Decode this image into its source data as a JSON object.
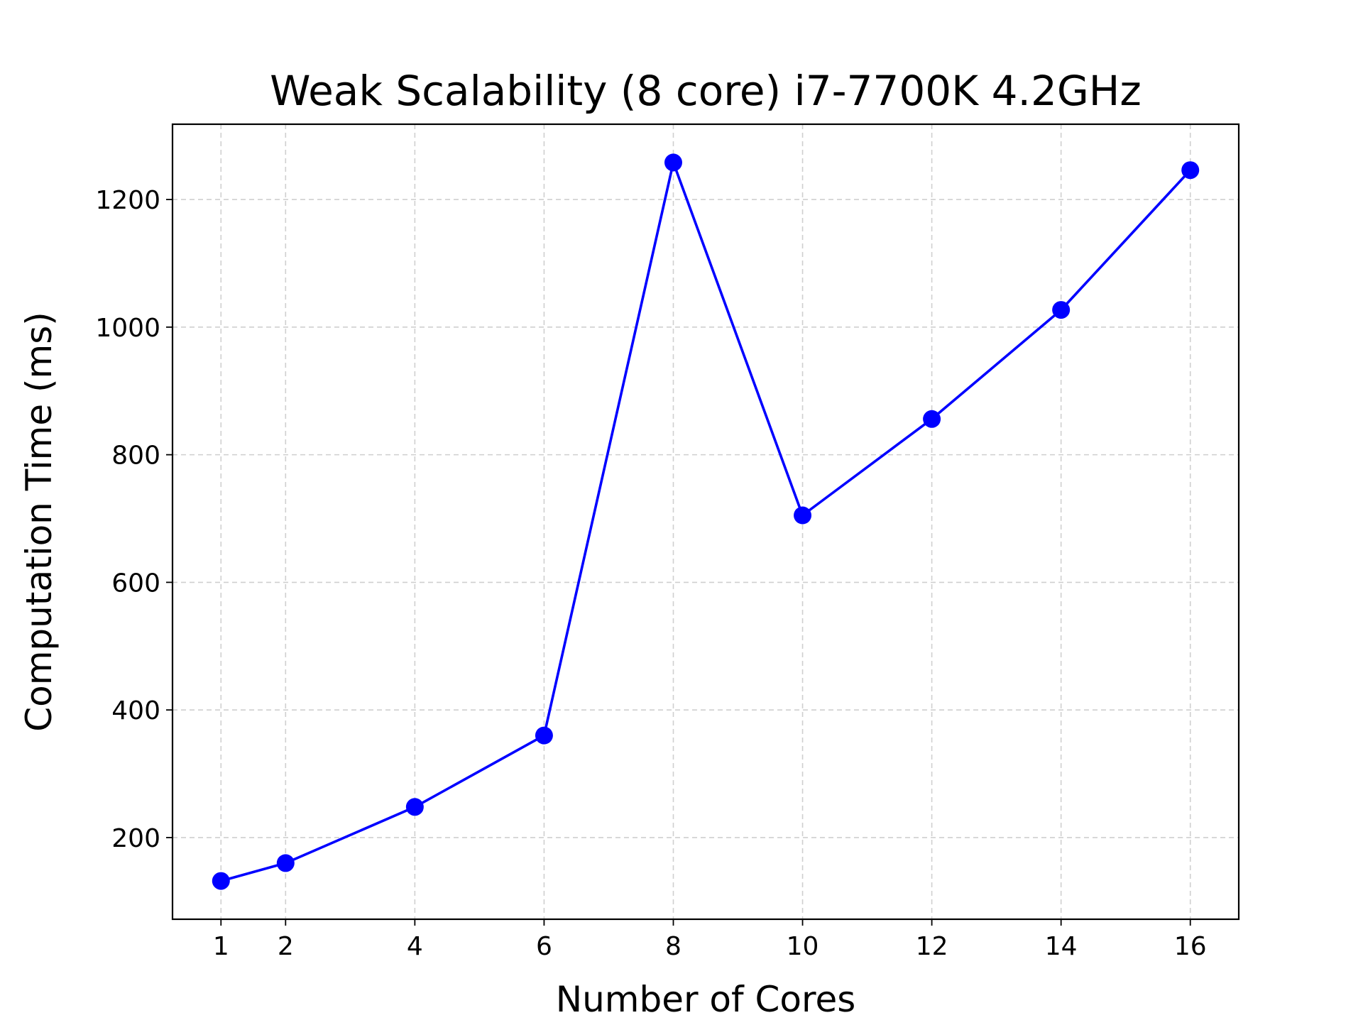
{
  "chart_data": {
    "type": "line",
    "title": "Weak Scalability (8 core) i7-7700K 4.2GHz",
    "xlabel": "Number of Cores",
    "ylabel": "Computation Time (ms)",
    "x": [
      1,
      2,
      4,
      6,
      8,
      10,
      12,
      14,
      16
    ],
    "series": [
      {
        "values": [
          132,
          160,
          248,
          360,
          1258,
          705,
          856,
          1027,
          1246
        ],
        "color": "#0000ff",
        "marker": "circle"
      }
    ],
    "xticks": [
      1,
      2,
      4,
      6,
      8,
      10,
      12,
      14,
      16
    ],
    "yticks": [
      200,
      400,
      600,
      800,
      1000,
      1200
    ],
    "xlim": [
      0.25,
      16.75
    ],
    "ylim": [
      72,
      1318
    ],
    "grid": true,
    "grid_style": "dashed",
    "legend": "none"
  }
}
